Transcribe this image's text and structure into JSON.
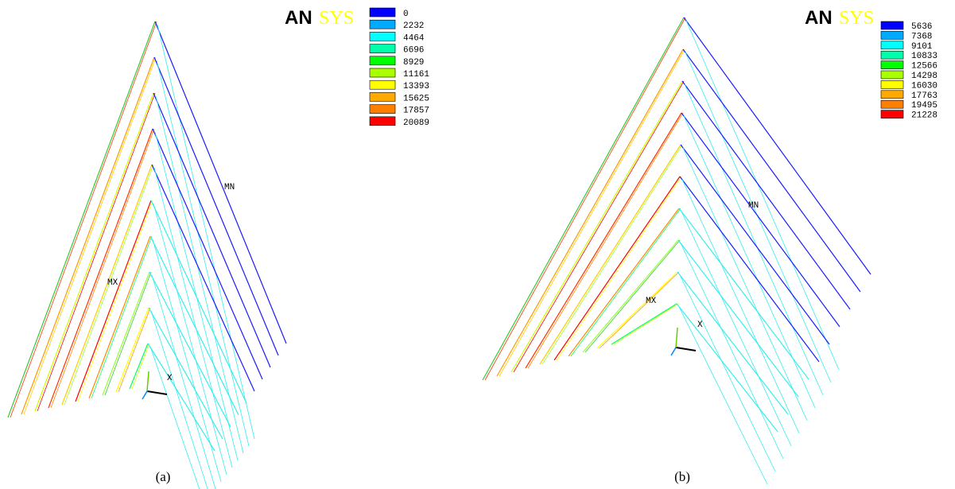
{
  "panels": [
    {
      "logo": {
        "bold": "AN",
        "light": "SYS"
      },
      "legend": {
        "values": [
          0,
          2232,
          4464,
          6696,
          8929,
          11161,
          13393,
          15625,
          17857,
          20089
        ],
        "colors": [
          "#0000ff",
          "#00aaff",
          "#00ffff",
          "#00ffaa",
          "#00ff00",
          "#aaff00",
          "#ffff00",
          "#ffaa00",
          "#ff7f00",
          "#ff0000"
        ]
      },
      "labels": {
        "mn": "MN",
        "mx": "MX",
        "axis": "X"
      },
      "caption": "(a)"
    },
    {
      "logo": {
        "bold": "AN",
        "light": "SYS"
      },
      "legend": {
        "values": [
          5636,
          7368,
          9101,
          10833,
          12566,
          14298,
          16030,
          17763,
          19495,
          21228
        ],
        "colors": [
          "#0000ff",
          "#00aaff",
          "#00ffff",
          "#00ffaa",
          "#00ff00",
          "#aaff00",
          "#ffff00",
          "#ffaa00",
          "#ff7f00",
          "#ff0000"
        ]
      },
      "labels": {
        "mn": "MN",
        "mx": "MX",
        "axis": "X"
      },
      "caption": "(b)"
    }
  ]
}
